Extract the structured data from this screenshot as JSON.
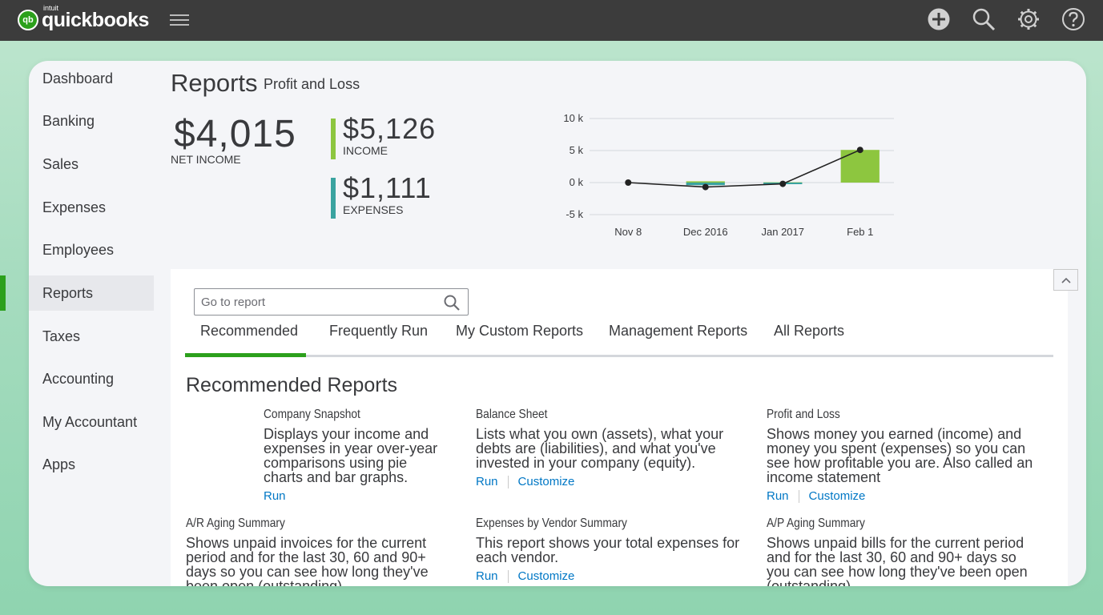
{
  "topbar": {
    "logo_small": "intuit",
    "logo_word": "quickbooks",
    "logo_mark": "qb",
    "icons": [
      "plus-icon",
      "search-icon",
      "gear-icon",
      "help-icon"
    ]
  },
  "sidebar": {
    "items": [
      {
        "label": "Dashboard"
      },
      {
        "label": "Banking"
      },
      {
        "label": "Sales"
      },
      {
        "label": "Expenses"
      },
      {
        "label": "Employees"
      },
      {
        "label": "Reports",
        "active": true
      },
      {
        "label": "Taxes"
      },
      {
        "label": "Accounting"
      },
      {
        "label": "My Accountant"
      },
      {
        "label": "Apps"
      }
    ]
  },
  "header": {
    "title": "Reports",
    "subtitle": "Profit and Loss"
  },
  "summary": {
    "net_amount": "$4,015",
    "net_label": "NET INCOME",
    "income_amount": "$5,126",
    "income_label": "INCOME",
    "expenses_amount": "$1,111",
    "expenses_label": "EXPENSES",
    "income_color": "#8dc63f",
    "expenses_color": "#3aa3a0"
  },
  "chart_data": {
    "type": "bar",
    "categories": [
      "Nov 8",
      "Dec 2016",
      "Jan 2017",
      "Feb 1"
    ],
    "y_ticks": [
      "10 k",
      "5 k",
      "0 k",
      "-5 k"
    ],
    "ylim": [
      -5,
      10
    ],
    "series": [
      {
        "values": [
          0,
          0.2,
          0.05,
          5.1
        ],
        "color": "#8dc63f"
      },
      {
        "values": [
          0,
          -0.4,
          -0.1,
          0
        ],
        "color": "#3aa3a0"
      },
      {
        "values": [
          0,
          -0.7,
          -0.2,
          5.1
        ],
        "color": "#222222"
      }
    ],
    "grid": true
  },
  "report_panel": {
    "search_placeholder": "Go to report",
    "tabs": [
      {
        "label": "Recommended",
        "active": true
      },
      {
        "label": "Frequently Run"
      },
      {
        "label": "My Custom Reports"
      },
      {
        "label": "Management Reports"
      },
      {
        "label": "All Reports"
      }
    ],
    "heading": "Recommended Reports",
    "run_label": "Run",
    "customize_label": "Customize",
    "reports": [
      {
        "name": "Company Snapshot",
        "desc": "Displays your income and expenses in year over-year comparisons using pie charts and bar graphs.",
        "customize": false
      },
      {
        "name": "Balance Sheet",
        "desc": "Lists what you own (assets), what your debts are (liabilities), and what you've invested in your company (equity).",
        "customize": true
      },
      {
        "name": "Profit and Loss",
        "desc": "Shows money you earned (income) and money you spent (expenses) so you can see how profitable you are. Also called an income statement",
        "customize": true
      },
      {
        "name": "A/R Aging Summary",
        "desc": "Shows unpaid invoices for the current period and for the last 30, 60 and 90+ days so you can see how long they've been open (outstanding).",
        "customize": false
      },
      {
        "name": "Expenses by Vendor Summary",
        "desc": "This report shows your total expenses for each vendor.",
        "customize": true
      },
      {
        "name": "A/P Aging Summary",
        "desc": "Shows unpaid bills for the current period and for the last 30, 60 and 90+ days so you can see how long they've been open (outstanding).",
        "customize": false
      }
    ]
  }
}
